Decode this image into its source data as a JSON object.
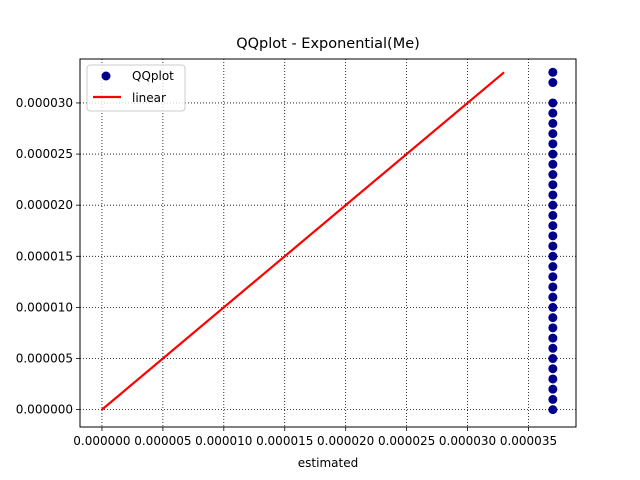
{
  "chart_data": {
    "type": "scatter",
    "title": "QQplot - Exponential(Me)",
    "xlabel": "estimated",
    "ylabel": "",
    "xlim": [
      -1.8e-06,
      3.89e-05
    ],
    "ylim": [
      -1.7e-06,
      3.43e-05
    ],
    "x_ticks": [
      0,
      5e-06,
      1e-05,
      1.5e-05,
      2e-05,
      2.5e-05,
      3e-05,
      3.5e-05
    ],
    "x_tick_labels": [
      "0.000000",
      "0.000005",
      "0.000010",
      "0.000015",
      "0.000020",
      "0.000025",
      "0.000030",
      "0.000035"
    ],
    "y_ticks": [
      0,
      5e-06,
      1e-05,
      1.5e-05,
      2e-05,
      2.5e-05,
      3e-05
    ],
    "y_tick_labels": [
      "0.000000",
      "0.000005",
      "0.000010",
      "0.000015",
      "0.000020",
      "0.000025",
      "0.000030"
    ],
    "grid": true,
    "legend_position": "top-left",
    "series": [
      {
        "name": "QQplot",
        "kind": "scatter",
        "color": "#00008b",
        "x": [
          3.7e-05,
          3.7e-05,
          3.7e-05,
          3.7e-05,
          3.7e-05,
          3.7e-05,
          3.7e-05,
          3.7e-05,
          3.7e-05,
          3.7e-05,
          3.7e-05,
          3.7e-05,
          3.7e-05,
          3.7e-05,
          3.7e-05,
          3.7e-05,
          3.7e-05,
          3.7e-05,
          3.7e-05,
          3.7e-05,
          3.7e-05,
          3.7e-05,
          3.7e-05,
          3.7e-05,
          3.7e-05,
          3.7e-05,
          3.7e-05,
          3.7e-05,
          3.7e-05,
          3.7e-05,
          3.7e-05,
          3.7e-05,
          3.7e-05
        ],
        "y": [
          0,
          1e-06,
          2e-06,
          3e-06,
          4e-06,
          5e-06,
          6e-06,
          7e-06,
          8e-06,
          9e-06,
          1e-05,
          1.1e-05,
          1.2e-05,
          1.3e-05,
          1.4e-05,
          1.5e-05,
          1.6e-05,
          1.7e-05,
          1.8e-05,
          1.9e-05,
          2e-05,
          2.1e-05,
          2.2e-05,
          2.3e-05,
          2.4e-05,
          2.5e-05,
          2.6e-05,
          2.7e-05,
          2.8e-05,
          2.9e-05,
          3e-05,
          3.2e-05,
          3.3e-05
        ]
      },
      {
        "name": "linear",
        "kind": "line",
        "color": "#ff0000",
        "x": [
          0,
          3.3e-05
        ],
        "y": [
          0,
          3.3e-05
        ]
      }
    ]
  }
}
